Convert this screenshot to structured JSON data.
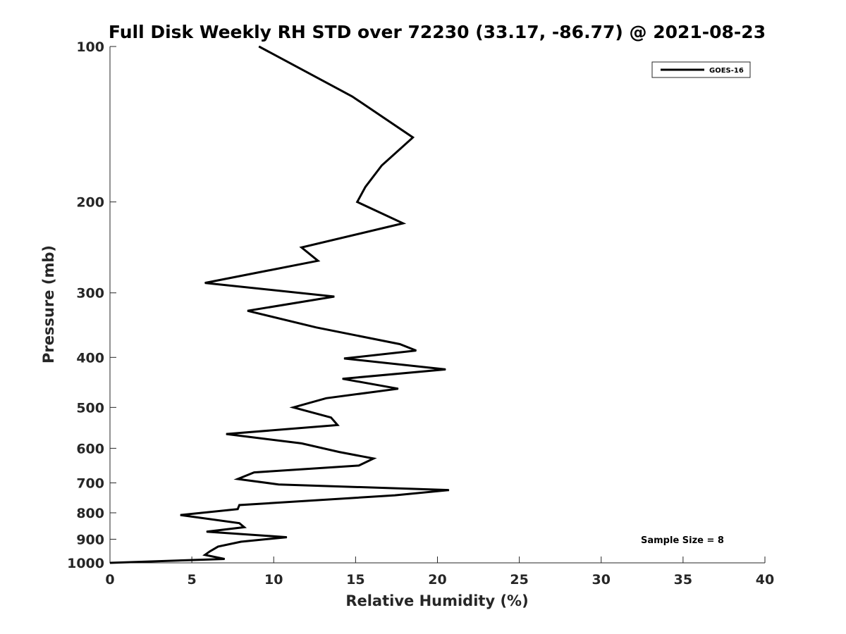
{
  "chart_data": {
    "type": "line",
    "title": "Full Disk Weekly RH STD over 72230 (33.17, -86.77) @ 2021-08-23",
    "xlabel": "Relative Humidity (%)",
    "ylabel": "Pressure (mb)",
    "xlim": [
      0,
      40
    ],
    "ylim": [
      100,
      1000
    ],
    "y_scale": "log",
    "y_reversed": true,
    "grid": false,
    "legend_placement": "top-right",
    "x_ticks": [
      0,
      5,
      10,
      15,
      20,
      25,
      30,
      35,
      40
    ],
    "y_ticks": [
      100,
      200,
      300,
      400,
      500,
      600,
      700,
      800,
      900,
      1000
    ],
    "annotation": "Sample Size = 8",
    "series": [
      {
        "name": "GOES-16",
        "color": "#000000",
        "points": [
          [
            9.1,
            100
          ],
          [
            14.8,
            125
          ],
          [
            18.5,
            150
          ],
          [
            16.6,
            170
          ],
          [
            15.6,
            187
          ],
          [
            15.1,
            200
          ],
          [
            17.9,
            220
          ],
          [
            11.7,
            245
          ],
          [
            12.7,
            260
          ],
          [
            5.8,
            287
          ],
          [
            13.7,
            305
          ],
          [
            8.4,
            325
          ],
          [
            12.6,
            350
          ],
          [
            17.7,
            377
          ],
          [
            18.7,
            388
          ],
          [
            14.3,
            402
          ],
          [
            20.5,
            422
          ],
          [
            14.2,
            440
          ],
          [
            17.6,
            460
          ],
          [
            13.2,
            480
          ],
          [
            11.2,
            500
          ],
          [
            13.5,
            523
          ],
          [
            13.9,
            541
          ],
          [
            7.1,
            563
          ],
          [
            11.7,
            587
          ],
          [
            14.0,
            610
          ],
          [
            16.1,
            628
          ],
          [
            15.2,
            648
          ],
          [
            8.8,
            668
          ],
          [
            7.8,
            688
          ],
          [
            10.3,
            705
          ],
          [
            20.7,
            723
          ],
          [
            17.4,
            740
          ],
          [
            7.9,
            773
          ],
          [
            7.8,
            787
          ],
          [
            4.3,
            808
          ],
          [
            7.9,
            838
          ],
          [
            8.2,
            853
          ],
          [
            5.9,
            870
          ],
          [
            10.8,
            892
          ],
          [
            8.0,
            910
          ],
          [
            6.6,
            930
          ],
          [
            6.1,
            950
          ],
          [
            5.8,
            965
          ],
          [
            7.0,
            983
          ],
          [
            0.0,
            1000
          ]
        ]
      }
    ]
  }
}
